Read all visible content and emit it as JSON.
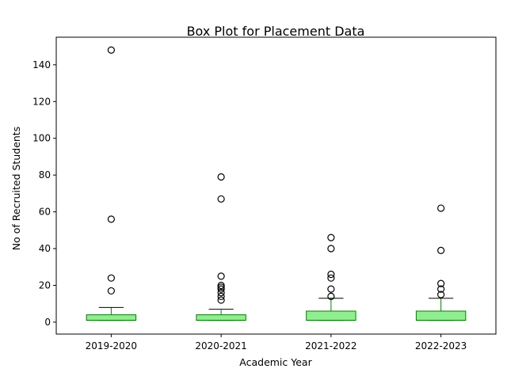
{
  "chart_data": {
    "type": "box",
    "title": "Box Plot for Placement Data",
    "xlabel": "Academic Year",
    "ylabel": "No of Recruited Students",
    "categories": [
      "2019-2020",
      "2020-2021",
      "2021-2022",
      "2022-2023"
    ],
    "ylim": [
      -6.5,
      155
    ],
    "yticks": [
      0,
      20,
      40,
      60,
      80,
      100,
      120,
      140
    ],
    "grid": false,
    "colors": {
      "box_fill": "#90ee90",
      "box_edge": "#008000",
      "median": "#008000",
      "whisker": "#000000",
      "outlier": "#000000"
    },
    "series": [
      {
        "category": "2019-2020",
        "min": 1,
        "q1": 1,
        "median": 1,
        "q3": 4,
        "max": 8,
        "outliers": [
          17,
          24,
          56,
          148
        ]
      },
      {
        "category": "2020-2021",
        "min": 1,
        "q1": 1,
        "median": 1,
        "q3": 4,
        "max": 7,
        "outliers": [
          12,
          14,
          16,
          18,
          19,
          20,
          25,
          67,
          79
        ]
      },
      {
        "category": "2021-2022",
        "min": 1,
        "q1": 1,
        "median": 1,
        "q3": 6,
        "max": 13,
        "outliers": [
          14,
          18,
          24,
          26,
          40,
          46
        ]
      },
      {
        "category": "2022-2023",
        "min": 1,
        "q1": 1,
        "median": 1,
        "q3": 6,
        "max": 13,
        "outliers": [
          15,
          18,
          21,
          39,
          62
        ]
      }
    ]
  }
}
